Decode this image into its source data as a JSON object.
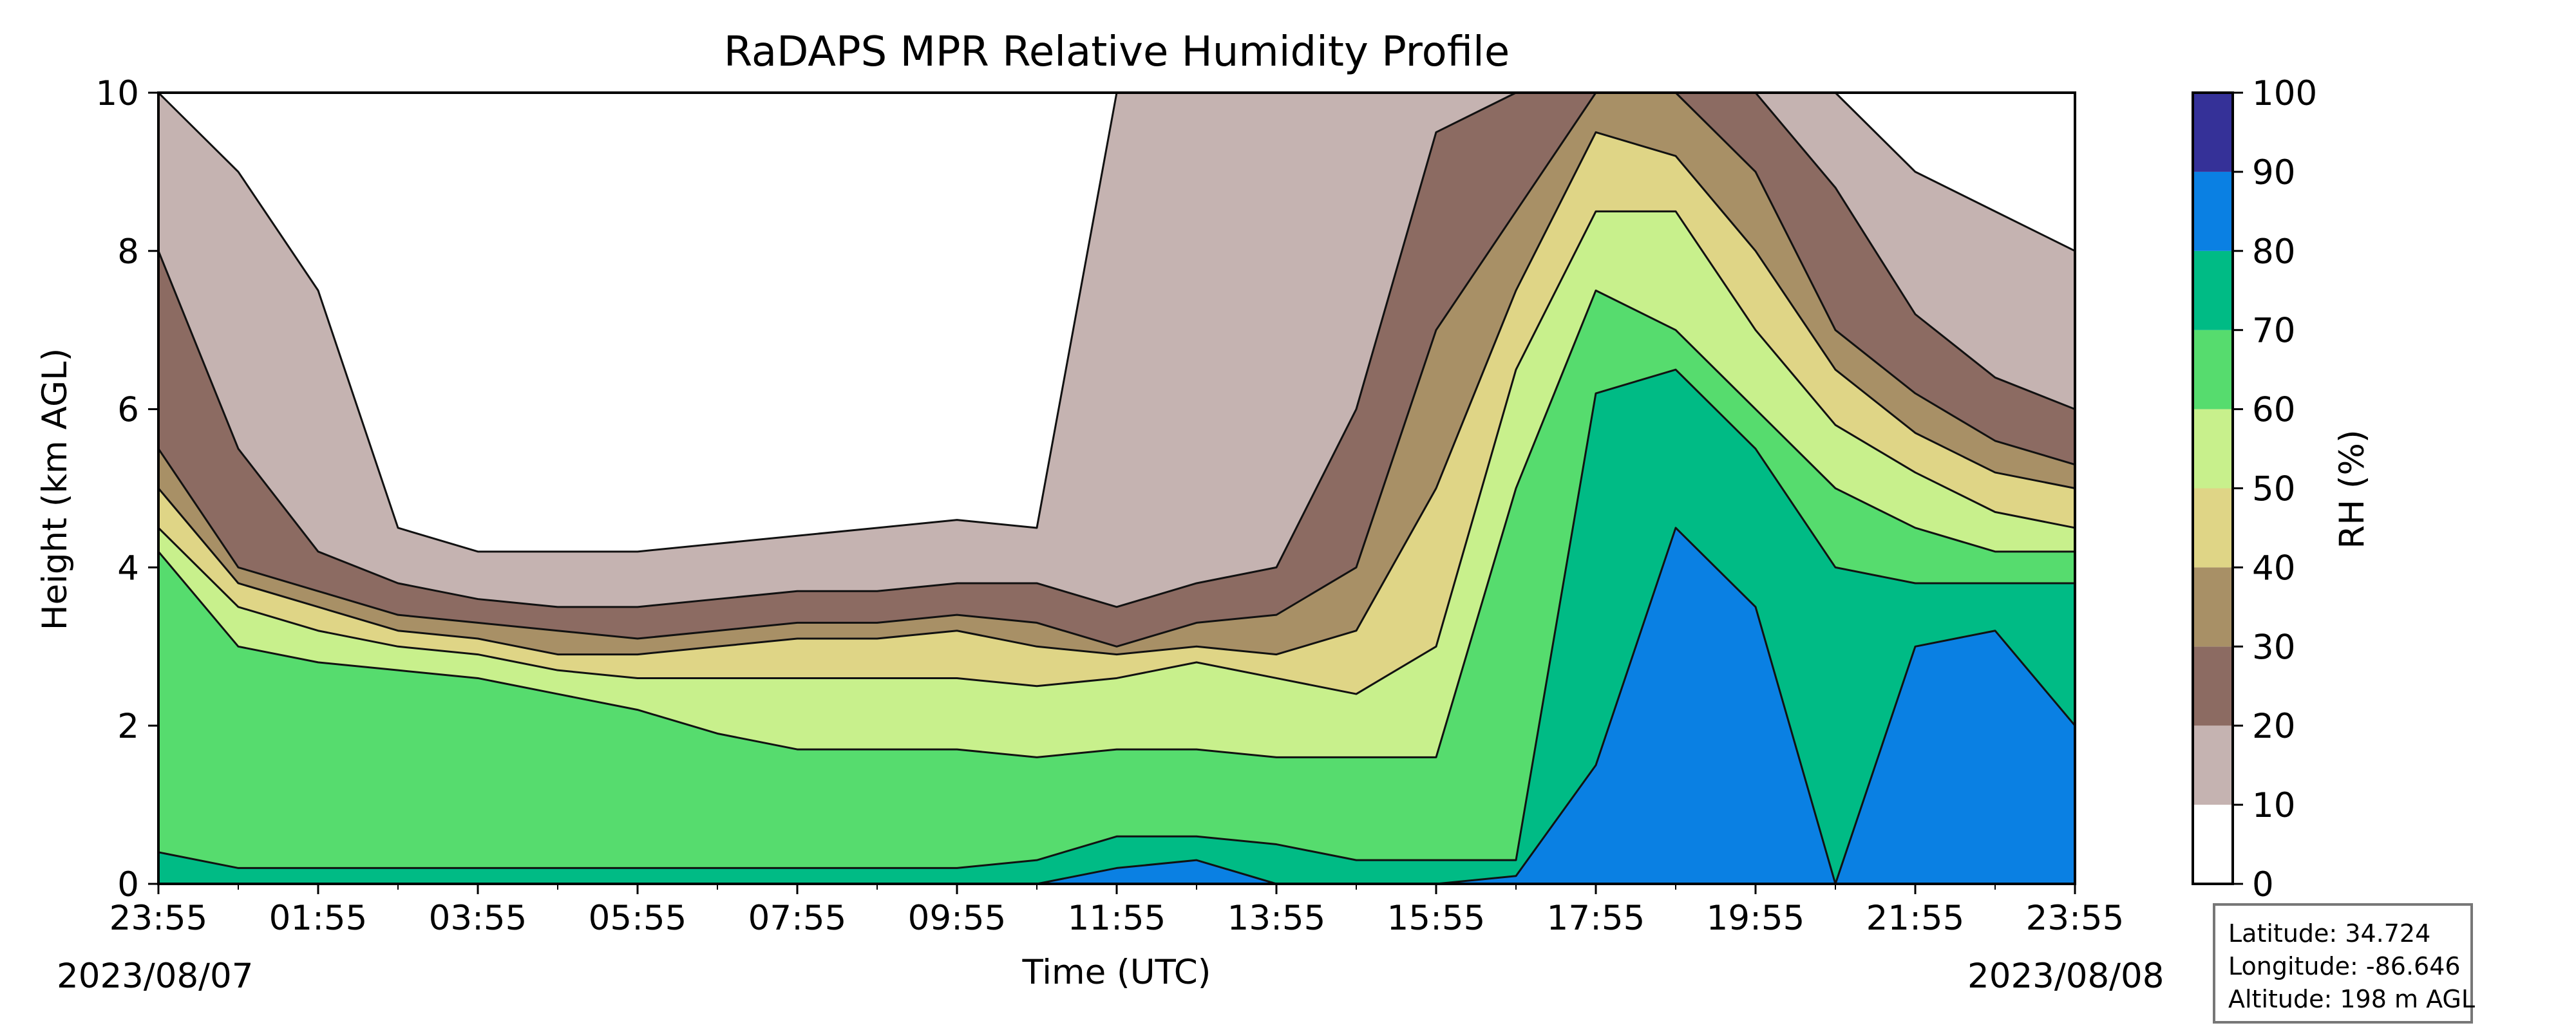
{
  "chart_data": {
    "type": "heatmap",
    "title": "RaDAPS MPR Relative Humidity Profile",
    "xlabel": "Time (UTC)",
    "ylabel": "Height (km AGL)",
    "x_tick_labels": [
      "23:55",
      "01:55",
      "03:55",
      "05:55",
      "07:55",
      "09:55",
      "11:55",
      "13:55",
      "15:55",
      "17:55",
      "19:55",
      "21:55",
      "23:55"
    ],
    "x_tick_hours": [
      0,
      2,
      4,
      6,
      8,
      10,
      12,
      14,
      16,
      18,
      20,
      22,
      24
    ],
    "start_date_label": "2023/08/07",
    "end_date_label": "2023/08/08",
    "xlim_hours": [
      0,
      24
    ],
    "ylim": [
      0,
      10
    ],
    "y_ticks": [
      0,
      2,
      4,
      6,
      8,
      10
    ],
    "colorbar": {
      "label": "RH (%)",
      "levels": [
        0,
        10,
        20,
        30,
        40,
        50,
        60,
        70,
        80,
        90,
        100
      ],
      "colors": [
        "#ffffff",
        "#c5b3b1",
        "#8c6b62",
        "#a89066",
        "#dfd586",
        "#c8f08c",
        "#56dc6e",
        "#00bb85",
        "#0a80e3",
        "#353198"
      ]
    },
    "profiles_note": "RH bands (heights in km of each 10% contour) sampled at hour marks",
    "profile_hours": [
      0,
      1,
      2,
      3,
      4,
      5,
      6,
      7,
      8,
      9,
      10,
      11,
      12,
      13,
      14,
      15,
      16,
      17,
      18,
      19,
      20,
      21,
      22,
      23,
      24
    ],
    "contour_heights": {
      "rh90": [
        0,
        0,
        0,
        0,
        0,
        0,
        0,
        0,
        0,
        0,
        0,
        0,
        0.2,
        0.3,
        0,
        0,
        0,
        0.1,
        1.5,
        4.5,
        3.5,
        0,
        3.0,
        3.2,
        2.0
      ],
      "rh80": [
        0.4,
        0.2,
        0.2,
        0.2,
        0.2,
        0.2,
        0.2,
        0.2,
        0.2,
        0.2,
        0.2,
        0.3,
        0.6,
        0.6,
        0.5,
        0.3,
        0.3,
        0.3,
        6.2,
        6.5,
        5.5,
        4.0,
        3.8,
        3.8,
        3.8
      ],
      "rh70": [
        4.2,
        3.0,
        2.8,
        2.7,
        2.6,
        2.4,
        2.2,
        1.9,
        1.7,
        1.7,
        1.7,
        1.6,
        1.7,
        1.7,
        1.6,
        1.6,
        1.6,
        5.0,
        7.5,
        7.0,
        6.0,
        5.0,
        4.5,
        4.2,
        4.2
      ],
      "rh60": [
        4.5,
        3.5,
        3.2,
        3.0,
        2.9,
        2.7,
        2.6,
        2.6,
        2.6,
        2.6,
        2.6,
        2.5,
        2.6,
        2.8,
        2.6,
        2.4,
        3.0,
        6.5,
        8.5,
        8.5,
        7.0,
        5.8,
        5.2,
        4.7,
        4.5
      ],
      "rh50": [
        5.0,
        3.8,
        3.5,
        3.2,
        3.1,
        2.9,
        2.9,
        3.0,
        3.1,
        3.1,
        3.2,
        3.0,
        2.9,
        3.0,
        2.9,
        3.2,
        5.0,
        7.5,
        9.5,
        9.2,
        8.0,
        6.5,
        5.7,
        5.2,
        5.0
      ],
      "rh40": [
        5.5,
        4.0,
        3.7,
        3.4,
        3.3,
        3.2,
        3.1,
        3.2,
        3.3,
        3.3,
        3.4,
        3.3,
        3.0,
        3.3,
        3.4,
        4.0,
        7.0,
        8.5,
        10,
        10,
        9.0,
        7.0,
        6.2,
        5.6,
        5.3
      ],
      "rh30": [
        8.0,
        5.5,
        4.2,
        3.8,
        3.6,
        3.5,
        3.5,
        3.6,
        3.7,
        3.7,
        3.8,
        3.8,
        3.5,
        3.8,
        4.0,
        6.0,
        9.5,
        10,
        10,
        10,
        10,
        8.8,
        7.2,
        6.4,
        6.0
      ],
      "rh20": [
        10,
        9.0,
        7.5,
        4.5,
        4.2,
        4.2,
        4.2,
        4.3,
        4.4,
        4.5,
        4.6,
        4.5,
        10,
        10,
        10,
        10,
        10,
        10,
        10,
        10,
        10,
        10,
        9.0,
        8.5,
        8.0
      ]
    }
  },
  "info": {
    "latitude": "Latitude: 34.724",
    "longitude": "Longitude: -86.646",
    "altitude": "Altitude: 198 m AGL"
  }
}
